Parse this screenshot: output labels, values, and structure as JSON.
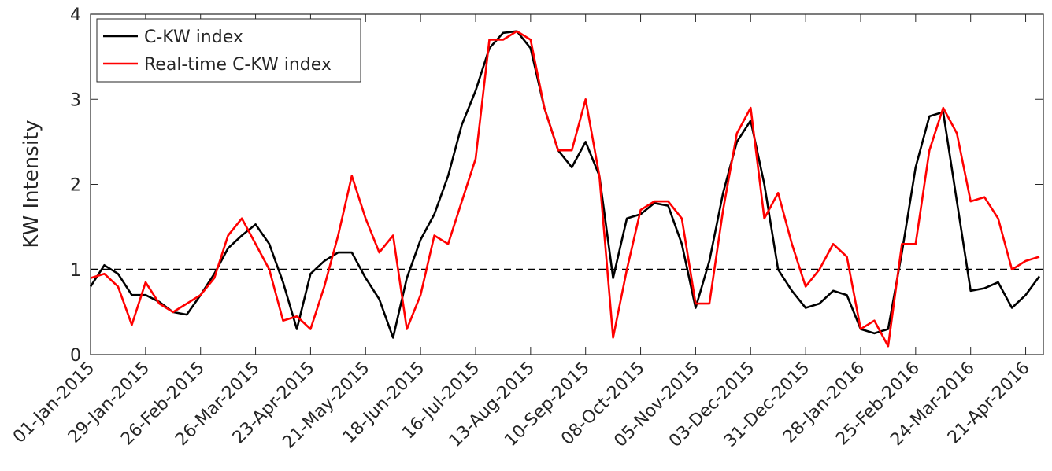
{
  "chart_data": {
    "type": "line",
    "y_label": "KW Intensity",
    "x": [
      "2015-01-01",
      "2015-01-08",
      "2015-01-15",
      "2015-01-22",
      "2015-01-29",
      "2015-02-05",
      "2015-02-12",
      "2015-02-19",
      "2015-02-26",
      "2015-03-05",
      "2015-03-12",
      "2015-03-19",
      "2015-03-26",
      "2015-04-02",
      "2015-04-09",
      "2015-04-16",
      "2015-04-23",
      "2015-04-30",
      "2015-05-07",
      "2015-05-14",
      "2015-05-21",
      "2015-05-28",
      "2015-06-04",
      "2015-06-11",
      "2015-06-18",
      "2015-06-25",
      "2015-07-02",
      "2015-07-09",
      "2015-07-16",
      "2015-07-23",
      "2015-07-30",
      "2015-08-06",
      "2015-08-13",
      "2015-08-20",
      "2015-08-27",
      "2015-09-03",
      "2015-09-10",
      "2015-09-17",
      "2015-09-24",
      "2015-10-01",
      "2015-10-08",
      "2015-10-15",
      "2015-10-22",
      "2015-10-29",
      "2015-11-05",
      "2015-11-12",
      "2015-11-19",
      "2015-11-26",
      "2015-12-03",
      "2015-12-10",
      "2015-12-17",
      "2015-12-24",
      "2015-12-31",
      "2016-01-07",
      "2016-01-14",
      "2016-01-21",
      "2016-01-28",
      "2016-02-04",
      "2016-02-11",
      "2016-02-18",
      "2016-02-25",
      "2016-03-03",
      "2016-03-10",
      "2016-03-17",
      "2016-03-24",
      "2016-03-31",
      "2016-04-07",
      "2016-04-14",
      "2016-04-21",
      "2016-04-28"
    ],
    "series": [
      {
        "name": "C-KW index",
        "color": "#000000",
        "values": [
          0.8,
          1.05,
          0.95,
          0.7,
          0.7,
          0.62,
          0.5,
          0.47,
          0.7,
          0.95,
          1.25,
          1.4,
          1.53,
          1.3,
          0.85,
          0.3,
          0.95,
          1.1,
          1.2,
          1.2,
          0.9,
          0.65,
          0.2,
          0.9,
          1.35,
          1.65,
          2.1,
          2.7,
          3.1,
          3.6,
          3.78,
          3.8,
          3.6,
          2.9,
          2.4,
          2.2,
          2.5,
          2.1,
          0.9,
          1.6,
          1.65,
          1.78,
          1.75,
          1.3,
          0.55,
          1.1,
          1.9,
          2.5,
          2.75,
          2.0,
          1.0,
          0.75,
          0.55,
          0.6,
          0.75,
          0.7,
          0.3,
          0.25,
          0.3,
          1.2,
          2.2,
          2.8,
          2.85,
          1.8,
          0.75,
          0.78,
          0.85,
          0.55,
          0.7,
          0.92
        ]
      },
      {
        "name": "Real-time C-KW index",
        "color": "#ff0000",
        "values": [
          0.9,
          0.95,
          0.8,
          0.35,
          0.85,
          0.6,
          0.5,
          0.6,
          0.7,
          0.9,
          1.4,
          1.6,
          1.3,
          1.0,
          0.4,
          0.45,
          0.3,
          0.8,
          1.4,
          2.1,
          1.6,
          1.2,
          1.4,
          0.3,
          0.7,
          1.4,
          1.3,
          1.8,
          2.3,
          3.7,
          3.7,
          3.8,
          3.7,
          2.9,
          2.4,
          2.4,
          3.0,
          2.1,
          0.2,
          1.0,
          1.7,
          1.8,
          1.8,
          1.6,
          0.6,
          0.6,
          1.7,
          2.6,
          2.9,
          1.6,
          1.9,
          1.3,
          0.8,
          1.0,
          1.3,
          1.15,
          0.3,
          0.4,
          0.1,
          1.3,
          1.3,
          2.4,
          2.9,
          2.6,
          1.8,
          1.85,
          1.6,
          1.0,
          1.1,
          1.15
        ]
      }
    ],
    "reference_line": 1,
    "xlim": [
      "2015-01-01",
      "2016-04-30"
    ],
    "xticks": [
      {
        "value": "2015-01-01",
        "label": "01-Jan-2015"
      },
      {
        "value": "2015-01-29",
        "label": "29-Jan-2015"
      },
      {
        "value": "2015-02-26",
        "label": "26-Feb-2015"
      },
      {
        "value": "2015-03-26",
        "label": "26-Mar-2015"
      },
      {
        "value": "2015-04-23",
        "label": "23-Apr-2015"
      },
      {
        "value": "2015-05-21",
        "label": "21-May-2015"
      },
      {
        "value": "2015-06-18",
        "label": "18-Jun-2015"
      },
      {
        "value": "2015-07-16",
        "label": "16-Jul-2015"
      },
      {
        "value": "2015-08-13",
        "label": "13-Aug-2015"
      },
      {
        "value": "2015-09-10",
        "label": "10-Sep-2015"
      },
      {
        "value": "2015-10-08",
        "label": "08-Oct-2015"
      },
      {
        "value": "2015-11-05",
        "label": "05-Nov-2015"
      },
      {
        "value": "2015-12-03",
        "label": "03-Dec-2015"
      },
      {
        "value": "2015-12-31",
        "label": "31-Dec-2015"
      },
      {
        "value": "2016-01-28",
        "label": "28-Jan-2016"
      },
      {
        "value": "2016-02-25",
        "label": "25-Feb-2016"
      },
      {
        "value": "2016-03-24",
        "label": "24-Mar-2016"
      },
      {
        "value": "2016-04-21",
        "label": "21-Apr-2016"
      }
    ],
    "ylim": [
      0,
      4
    ],
    "yticks": [
      0,
      1,
      2,
      3,
      4
    ],
    "grid": false,
    "legend": "upper-left"
  }
}
